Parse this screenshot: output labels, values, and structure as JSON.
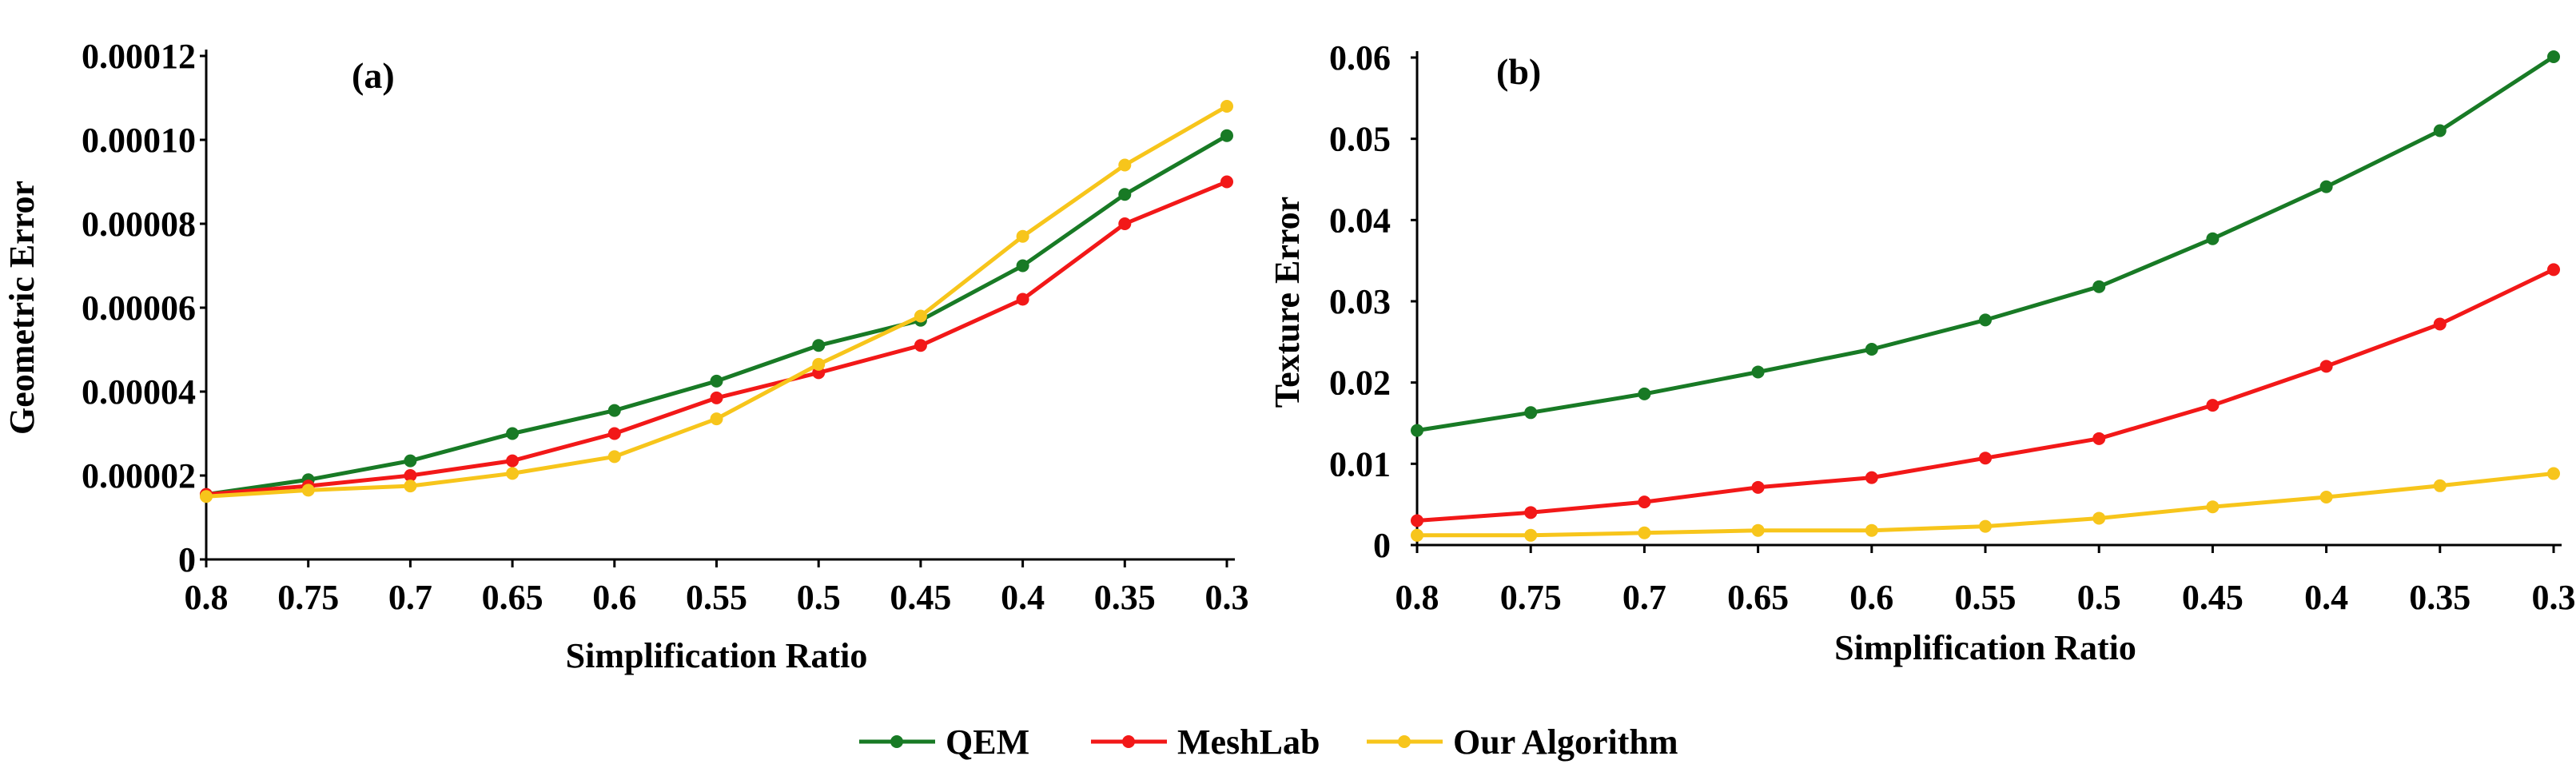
{
  "colors": {
    "QEM": "#187a25",
    "MeshLab": "#f21818",
    "Our Algorithm": "#f7c51b",
    "axis": "#000000"
  },
  "legend": {
    "placement": "bottom-center",
    "items": [
      "QEM",
      "MeshLab",
      "Our Algorithm"
    ]
  },
  "chart_data": [
    {
      "type": "line",
      "panel": "(a)",
      "xlabel": "Simplification Ratio",
      "ylabel": "Geometric Error",
      "categories": [
        "0.8",
        "0.75",
        "0.7",
        "0.65",
        "0.6",
        "0.55",
        "0.5",
        "0.45",
        "0.4",
        "0.35",
        "0.3"
      ],
      "ylim": [
        0,
        0.00012
      ],
      "yticks": [
        "0",
        "0.00002",
        "0.00004",
        "0.00006",
        "0.00008",
        "0.00010",
        "0.00012"
      ],
      "grid": false,
      "series": [
        {
          "name": "QEM",
          "values": [
            1.55e-05,
            1.9e-05,
            2.35e-05,
            3e-05,
            3.55e-05,
            4.25e-05,
            5.1e-05,
            5.7e-05,
            7e-05,
            8.7e-05,
            0.000101
          ]
        },
        {
          "name": "MeshLab",
          "values": [
            1.55e-05,
            1.75e-05,
            2e-05,
            2.35e-05,
            3e-05,
            3.85e-05,
            4.45e-05,
            5.1e-05,
            6.2e-05,
            8e-05,
            9e-05
          ]
        },
        {
          "name": "Our Algorithm",
          "values": [
            1.5e-05,
            1.65e-05,
            1.75e-05,
            2.05e-05,
            2.45e-05,
            3.35e-05,
            4.65e-05,
            5.8e-05,
            7.7e-05,
            9.4e-05,
            0.000108
          ]
        }
      ]
    },
    {
      "type": "line",
      "panel": "(b)",
      "xlabel": "Simplification Ratio",
      "ylabel": "Texture Error",
      "categories": [
        "0.8",
        "0.75",
        "0.7",
        "0.65",
        "0.6",
        "0.55",
        "0.5",
        "0.45",
        "0.4",
        "0.35",
        "0.3"
      ],
      "ylim": [
        0,
        0.06
      ],
      "yticks": [
        "0",
        "0.01",
        "0.02",
        "0.03",
        "0.04",
        "0.05",
        "0.06"
      ],
      "grid": false,
      "series": [
        {
          "name": "QEM",
          "values": [
            0.0141,
            0.0163,
            0.0186,
            0.0213,
            0.0241,
            0.0277,
            0.0318,
            0.0377,
            0.0441,
            0.051,
            0.0601
          ]
        },
        {
          "name": "MeshLab",
          "values": [
            0.003,
            0.004,
            0.0053,
            0.0071,
            0.0083,
            0.0107,
            0.0131,
            0.0172,
            0.022,
            0.0272,
            0.0339
          ]
        },
        {
          "name": "Our Algorithm",
          "values": [
            0.0012,
            0.0012,
            0.0015,
            0.0018,
            0.0018,
            0.0023,
            0.0033,
            0.0047,
            0.0059,
            0.0073,
            0.0088
          ]
        }
      ]
    }
  ]
}
